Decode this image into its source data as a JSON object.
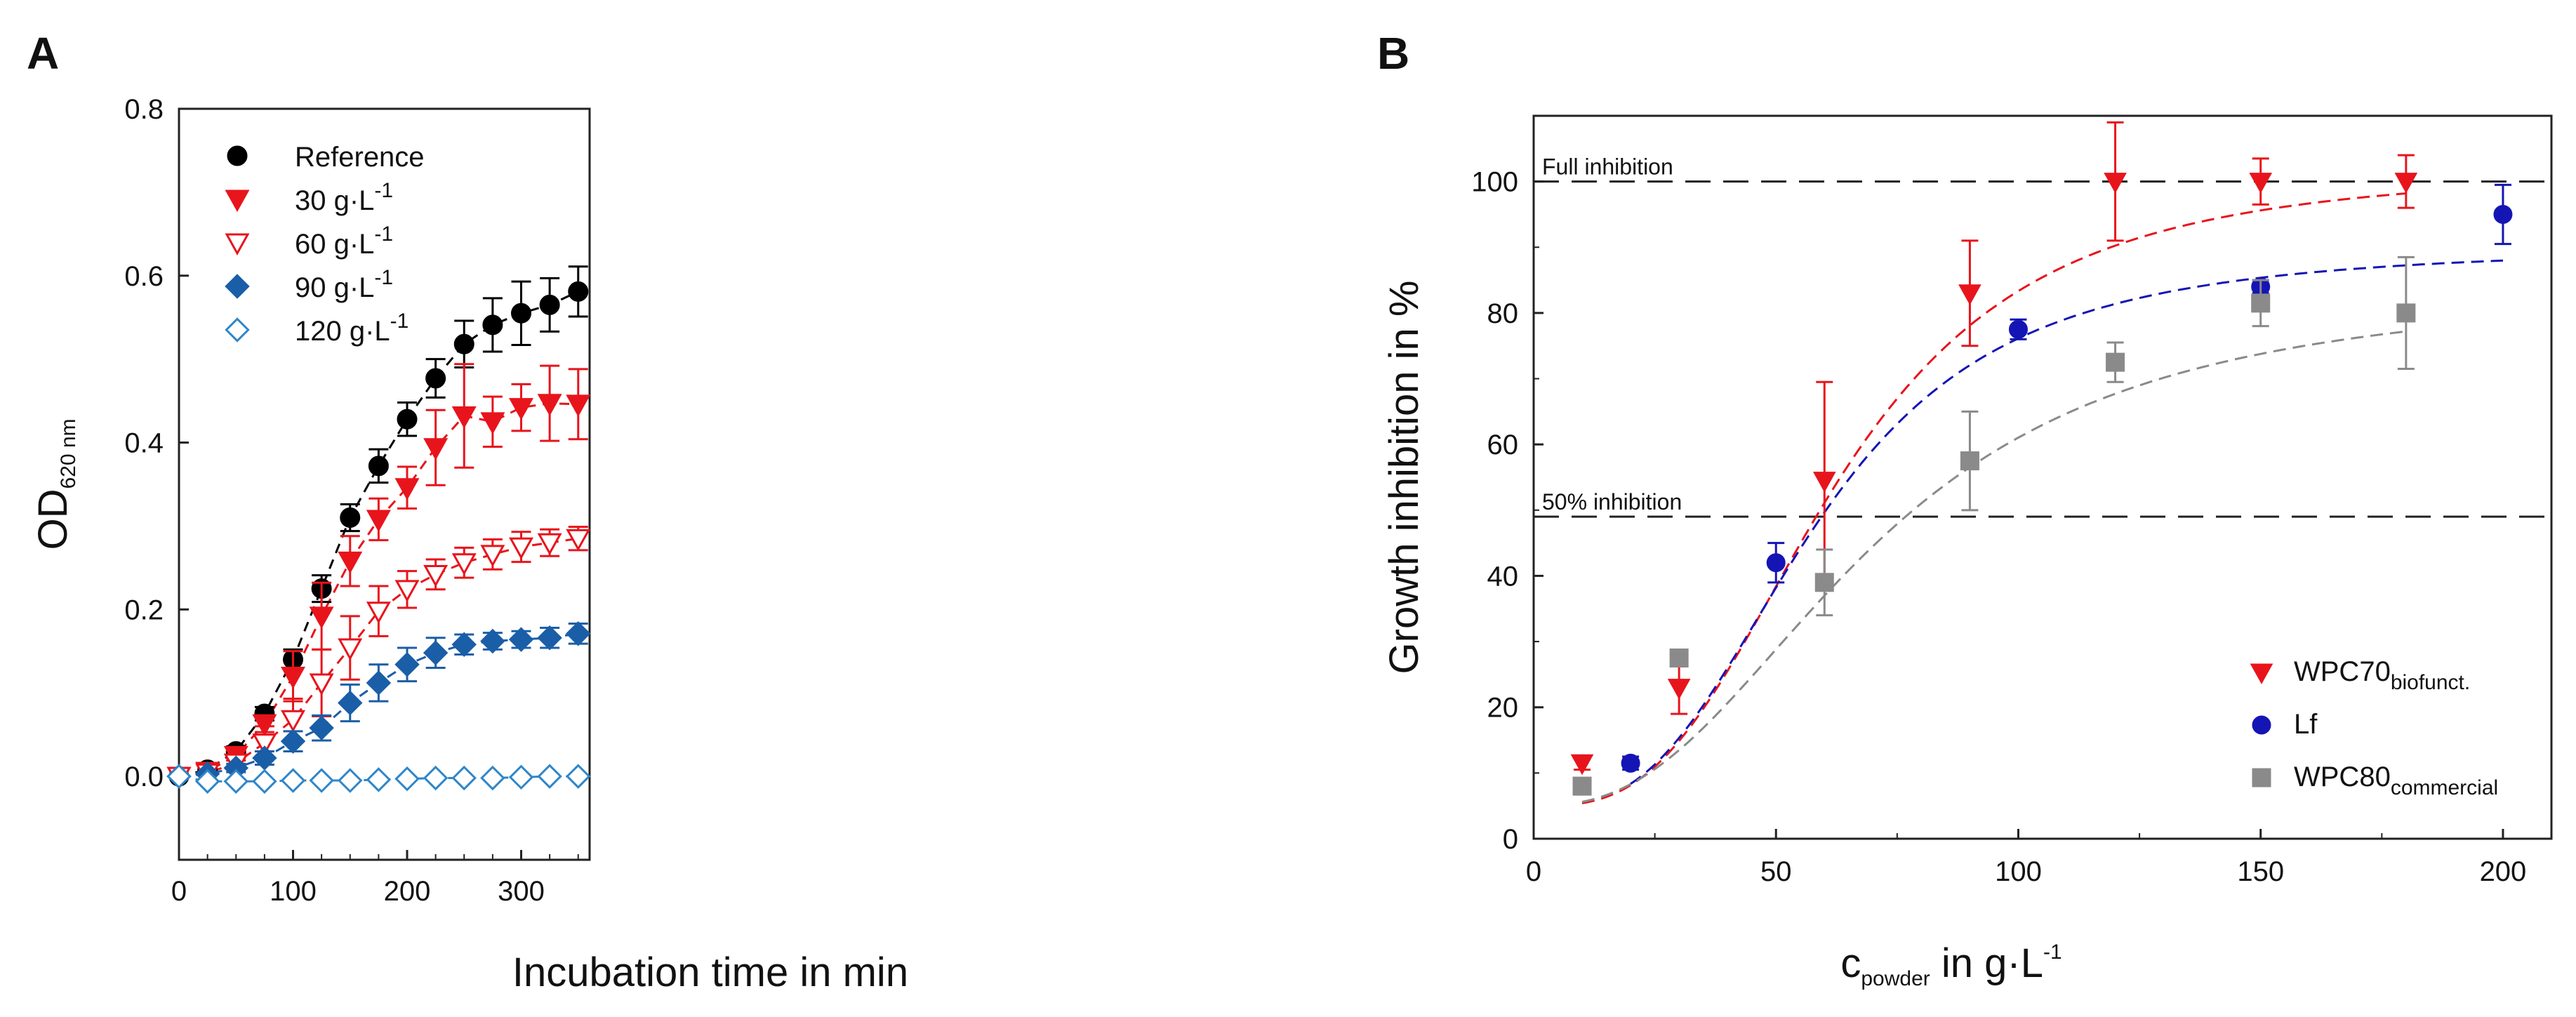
{
  "chart_data": [
    {
      "panel": "A",
      "type": "line",
      "xlabel": "Incubation time in min",
      "ylabel": {
        "main": "OD",
        "sub": "620 nm"
      },
      "xlim": [
        0,
        360
      ],
      "ylim": [
        -0.1,
        0.8
      ],
      "xticks": [
        0,
        100,
        200,
        300
      ],
      "yticks": [
        0.0,
        0.2,
        0.4,
        0.6,
        0.8
      ],
      "x": [
        0,
        25,
        50,
        75,
        100,
        125,
        150,
        175,
        200,
        225,
        250,
        275,
        300,
        325,
        350
      ],
      "legend_position": "top-left",
      "series": [
        {
          "name": "Reference",
          "label_main": "Reference",
          "label_sup": "",
          "color": "#000000",
          "marker": "circle",
          "filled": true,
          "values": [
            0.0,
            0.008,
            0.03,
            0.075,
            0.14,
            0.225,
            0.31,
            0.372,
            0.428,
            0.477,
            0.518,
            0.541,
            0.555,
            0.565,
            0.581
          ],
          "errors": [
            0.003,
            0.004,
            0.006,
            0.008,
            0.012,
            0.016,
            0.016,
            0.02,
            0.02,
            0.023,
            0.028,
            0.032,
            0.038,
            0.032,
            0.03
          ]
        },
        {
          "name": "30 g·L-1",
          "label_main": "30 g·L",
          "label_sup": "-1",
          "color": "#e8141c",
          "marker": "triangle-down",
          "filled": true,
          "values": [
            0.0,
            0.006,
            0.025,
            0.063,
            0.12,
            0.192,
            0.258,
            0.308,
            0.346,
            0.394,
            0.432,
            0.425,
            0.442,
            0.447,
            0.446
          ],
          "errors": [
            0.003,
            0.004,
            0.006,
            0.01,
            0.03,
            0.04,
            0.03,
            0.025,
            0.025,
            0.045,
            0.062,
            0.03,
            0.028,
            0.045,
            0.042
          ]
        },
        {
          "name": "60 g·L-1",
          "label_main": "60 g·L",
          "label_sup": "-1",
          "color": "#e8141c",
          "marker": "triangle-down",
          "filled": false,
          "values": [
            0.0,
            0.004,
            0.016,
            0.04,
            0.068,
            0.112,
            0.154,
            0.198,
            0.224,
            0.242,
            0.256,
            0.266,
            0.275,
            0.28,
            0.285
          ],
          "errors": [
            0.002,
            0.004,
            0.006,
            0.02,
            0.025,
            0.04,
            0.038,
            0.03,
            0.022,
            0.018,
            0.018,
            0.018,
            0.018,
            0.016,
            0.014
          ]
        },
        {
          "name": "90 g·L-1",
          "label_main": "90 g·L",
          "label_sup": "-1",
          "color": "#1a5ea8",
          "marker": "diamond",
          "filled": true,
          "values": [
            0.0,
            0.003,
            0.01,
            0.022,
            0.042,
            0.058,
            0.088,
            0.112,
            0.134,
            0.148,
            0.158,
            0.162,
            0.164,
            0.166,
            0.171
          ],
          "errors": [
            0.002,
            0.003,
            0.005,
            0.008,
            0.012,
            0.015,
            0.022,
            0.022,
            0.02,
            0.018,
            0.012,
            0.01,
            0.01,
            0.012,
            0.012
          ]
        },
        {
          "name": "120 g·L-1",
          "label_main": "120 g·L",
          "label_sup": "-1",
          "color": "#2f86c9",
          "marker": "diamond",
          "filled": false,
          "values": [
            0.0,
            -0.006,
            -0.006,
            -0.006,
            -0.005,
            -0.005,
            -0.005,
            -0.004,
            -0.003,
            -0.002,
            -0.002,
            -0.002,
            -0.001,
            0.0,
            0.0
          ],
          "errors": [
            0.002,
            0.002,
            0.002,
            0.002,
            0.002,
            0.002,
            0.002,
            0.002,
            0.002,
            0.002,
            0.002,
            0.002,
            0.002,
            0.002,
            0.002
          ]
        }
      ]
    },
    {
      "panel": "B",
      "type": "scatter",
      "xlabel": {
        "main": "c",
        "sub": "powder",
        "rest": " in g·L",
        "sup": "-1"
      },
      "ylabel": "Growth inhibition in %",
      "xlim": [
        0,
        210
      ],
      "ylim": [
        0,
        110
      ],
      "xticks": [
        0,
        50,
        100,
        150,
        200
      ],
      "yticks": [
        0,
        20,
        40,
        60,
        80,
        100
      ],
      "legend_position": "bottom-right",
      "reference_lines": [
        {
          "label": "Full inhibition",
          "y": 100
        },
        {
          "label": "50% inhibition",
          "y": 49
        }
      ],
      "series": [
        {
          "name": "WPC70biofunct.",
          "label_main": "WPC70",
          "label_sub": "biofunct.",
          "color": "#e8141c",
          "marker": "triangle-down",
          "x": [
            10,
            30,
            60,
            90,
            120,
            150,
            180
          ],
          "values": [
            11.5,
            23,
            54.5,
            83,
            100,
            100,
            100
          ],
          "errors": [
            1.0,
            4.0,
            15.0,
            8.0,
            9.0,
            3.5,
            4.0
          ],
          "fit": {
            "top": 102,
            "bottom": 5,
            "x50": 62,
            "hill": 3.0
          }
        },
        {
          "name": "Lf",
          "label_main": "Lf",
          "label_sub": "",
          "color": "#1515b5",
          "marker": "circle",
          "x": [
            20,
            50,
            100,
            150,
            200
          ],
          "values": [
            11.5,
            42,
            77.5,
            84,
            95
          ],
          "errors": [
            1.0,
            3.0,
            1.5,
            1.0,
            4.5
          ],
          "fit": {
            "top": 90,
            "bottom": 5,
            "x50": 58,
            "hill": 3.0
          }
        },
        {
          "name": "WPC80commercial",
          "label_main": "WPC80",
          "label_sub": "commercial",
          "color": "#8a8a8a",
          "marker": "square",
          "x": [
            10,
            30,
            60,
            90,
            120,
            150,
            180
          ],
          "values": [
            8,
            27.5,
            39,
            57.5,
            72.5,
            81.5,
            80
          ],
          "errors": [
            1.0,
            1.0,
            5.0,
            7.5,
            3.0,
            3.5,
            8.5
          ],
          "fit": {
            "top": 84,
            "bottom": 5,
            "x50": 70,
            "hill": 2.5
          }
        }
      ]
    }
  ]
}
